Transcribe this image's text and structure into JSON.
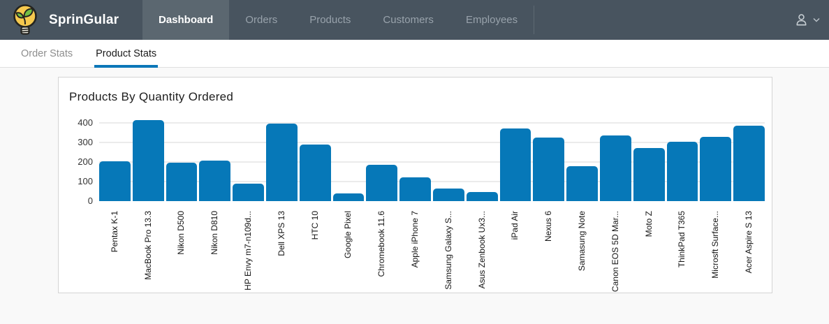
{
  "brand": {
    "name": "SprinGular"
  },
  "nav": {
    "items": [
      {
        "label": "Dashboard",
        "active": true
      },
      {
        "label": "Orders",
        "active": false
      },
      {
        "label": "Products",
        "active": false
      },
      {
        "label": "Customers",
        "active": false
      },
      {
        "label": "Employees",
        "active": false
      }
    ]
  },
  "tabs": [
    {
      "label": "Order Stats",
      "active": false
    },
    {
      "label": "Product Stats",
      "active": true
    }
  ],
  "chart_data": {
    "type": "bar",
    "title": "Products By Quantity Ordered",
    "categories": [
      "Pentax K-1",
      "MacBook Pro 13.3",
      "Nikon D500",
      "Nikon D810",
      "HP Envy m7-n109d...",
      "Dell XPS 13",
      "HTC 10",
      "Google Pixel",
      "Chromebook 11.6",
      "Apple iPhone 7",
      "Samsung Galaxy S...",
      "Asus Zenbook Ux3...",
      "iPad Air",
      "Nexus 6",
      "Samasung Note",
      "Canon EOS 5D Mar...",
      "Moto Z",
      "ThinkPad T365",
      "Microsft Surface...",
      "Acer Aspire S 13"
    ],
    "values": [
      205,
      415,
      197,
      207,
      90,
      395,
      290,
      40,
      185,
      120,
      65,
      45,
      370,
      325,
      180,
      335,
      270,
      305,
      330,
      385
    ],
    "xlabel": "",
    "ylabel": "",
    "yticks": [
      0,
      100,
      200,
      300,
      400
    ],
    "ylim": [
      0,
      450
    ],
    "grid": true,
    "legend_position": "none",
    "x_label_rotation": -90,
    "bar_color": "#0678b8"
  },
  "colors": {
    "navbar_bg": "#48545f",
    "navbar_active_bg": "#5b6770",
    "nav_text": "#98a2ab",
    "accent_blue": "#0c77b8",
    "bar_blue": "#0678b8",
    "page_bg": "#f9f9f9",
    "card_border": "#d4d4d4",
    "gridline": "#ebebeb",
    "logo_yellow": "#f6c94e",
    "logo_green": "#72bf44"
  }
}
